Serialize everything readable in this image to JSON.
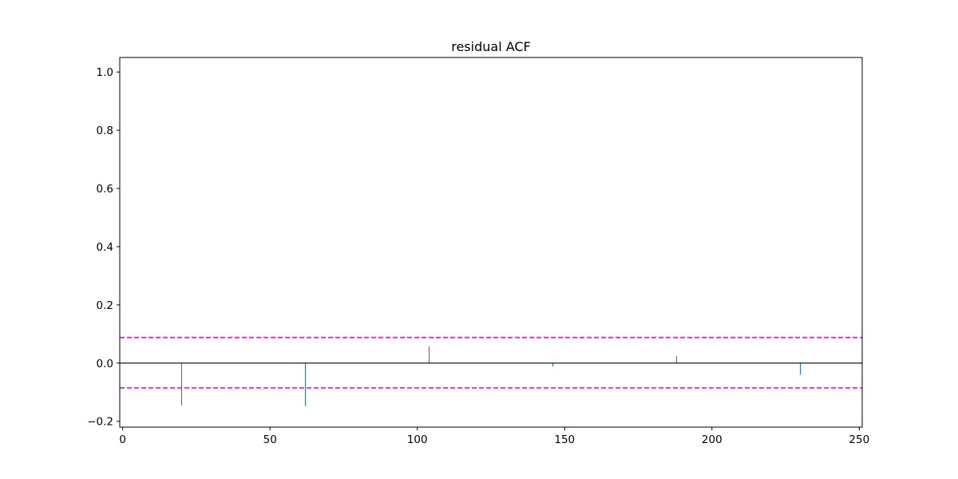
{
  "chart_data": {
    "type": "bar",
    "title": "residual ACF",
    "xlabel": "",
    "ylabel": "",
    "xlim": [
      -1,
      251
    ],
    "ylim": [
      -0.22,
      1.05
    ],
    "x_ticks": [
      0,
      50,
      100,
      150,
      200,
      250
    ],
    "y_ticks": [
      -0.2,
      0.0,
      0.2,
      0.4,
      0.6,
      0.8,
      1.0
    ],
    "x_tick_labels": [
      "0",
      "50",
      "100",
      "150",
      "200",
      "250"
    ],
    "y_tick_labels": [
      "−0.2",
      "0.0",
      "0.2",
      "0.4",
      "0.6",
      "0.8",
      "1.0"
    ],
    "series": [
      {
        "lags": [
          20,
          62,
          104,
          146,
          188,
          230
        ],
        "values": [
          -0.145,
          -0.148,
          0.058,
          -0.012,
          0.024,
          -0.04
        ],
        "color": "#1f77b4"
      }
    ],
    "zero_line": {
      "y": 0.0,
      "color": "#000000"
    },
    "confidence_bounds": {
      "upper": 0.088,
      "lower": -0.085,
      "color": "#ff00ff",
      "style": "dashed"
    },
    "grid": false,
    "legend": "none"
  }
}
